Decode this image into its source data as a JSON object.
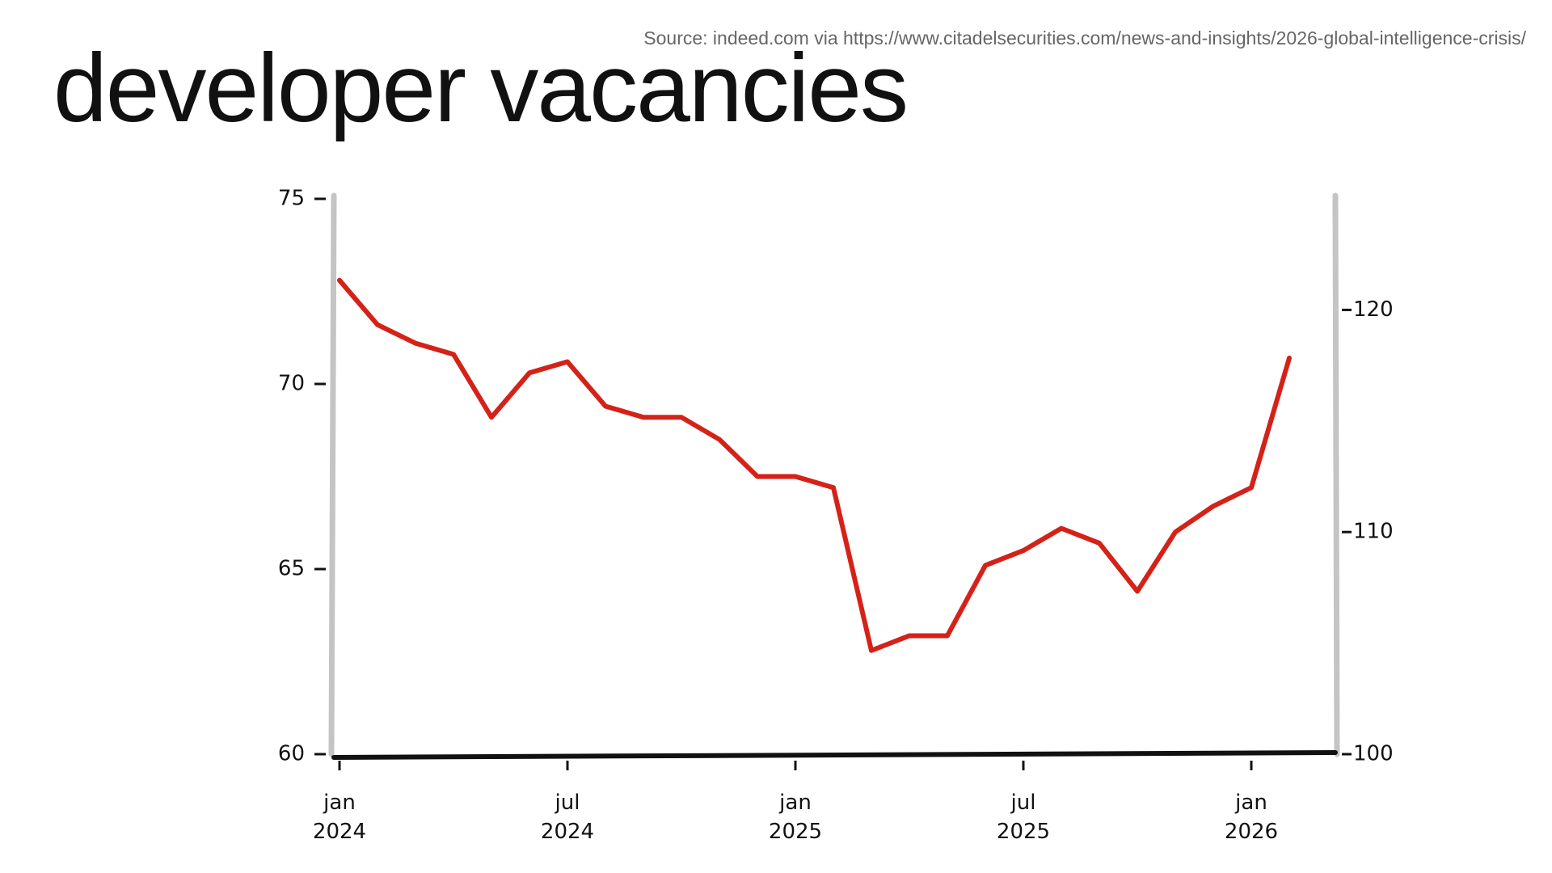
{
  "chart_data": {
    "type": "line",
    "title": "developer vacancies",
    "source": "Source: indeed.com via https://www.citadelsecurities.com/news-and-insights/2026-global-intelligence-crisis/",
    "x": [
      "2024-01",
      "2024-02",
      "2024-03",
      "2024-04",
      "2024-05",
      "2024-06",
      "2024-07",
      "2024-08",
      "2024-09",
      "2024-10",
      "2024-11",
      "2024-12",
      "2025-01",
      "2025-02",
      "2025-03",
      "2025-04",
      "2025-05",
      "2025-06",
      "2025-07",
      "2025-08",
      "2025-09",
      "2025-10",
      "2025-11",
      "2025-12",
      "2026-01",
      "2026-02"
    ],
    "values": [
      72.8,
      71.6,
      71.1,
      70.8,
      69.1,
      70.3,
      70.6,
      69.4,
      69.1,
      69.1,
      68.5,
      67.5,
      67.5,
      67.2,
      62.8,
      63.2,
      63.2,
      65.1,
      65.5,
      66.1,
      65.7,
      64.4,
      66.0,
      66.7,
      67.2,
      70.7
    ],
    "color": "#d52218",
    "ylim": [
      60,
      75
    ],
    "yticks": [
      60,
      65,
      70,
      75
    ],
    "y2lim": [
      100,
      125
    ],
    "y2ticks": [
      100,
      110,
      120
    ],
    "xticks": [
      {
        "value": "2024-01",
        "label": "jan\n2024"
      },
      {
        "value": "2024-07",
        "label": "jul\n2024"
      },
      {
        "value": "2025-01",
        "label": "jan\n2025"
      },
      {
        "value": "2025-07",
        "label": "jul\n2025"
      },
      {
        "value": "2026-01",
        "label": "jan\n2026"
      }
    ]
  }
}
